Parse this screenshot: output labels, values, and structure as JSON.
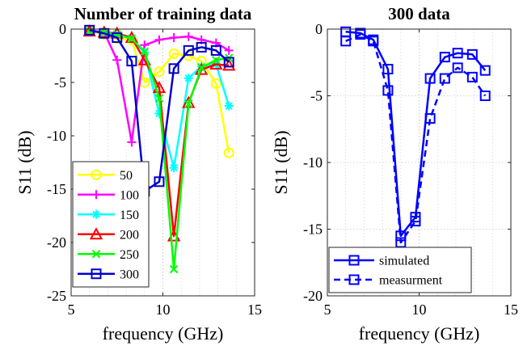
{
  "chart_data": [
    {
      "type": "line",
      "title": "Number of training data",
      "xlabel": "frequency (GHz)",
      "ylabel": "S11 (dB)",
      "xlim": [
        5,
        15
      ],
      "ylim": [
        -25,
        0
      ],
      "xticks": [
        5,
        10,
        15
      ],
      "yticks": [
        0,
        -5,
        -10,
        -15,
        -20,
        -25
      ],
      "grid": "vertical dotted",
      "legend": "bottom-left",
      "series": [
        {
          "name": "50",
          "color": "#ffff00",
          "marker": "circle",
          "x": [
            6.0,
            6.8,
            7.5,
            8.3,
            9.0,
            9.8,
            10.6,
            11.4,
            12.1,
            12.9,
            13.6
          ],
          "y": [
            -0.2,
            -0.5,
            -0.9,
            -1.0,
            -5.0,
            -4.0,
            -2.3,
            -2.5,
            -3.0,
            -5.1,
            -11.6
          ]
        },
        {
          "name": "100",
          "color": "#ff00ff",
          "marker": "plus",
          "x": [
            6.0,
            6.8,
            7.5,
            8.3,
            9.0,
            9.8,
            10.6,
            11.4,
            12.1,
            12.9,
            13.6
          ],
          "y": [
            -0.1,
            -0.3,
            -2.9,
            -10.6,
            -1.5,
            -1.0,
            -0.8,
            -0.7,
            -1.0,
            -1.3,
            -2.0
          ]
        },
        {
          "name": "150",
          "color": "#00ffff",
          "marker": "star",
          "x": [
            6.0,
            6.8,
            7.5,
            8.3,
            9.0,
            9.8,
            10.6,
            11.4,
            12.1,
            12.9,
            13.6
          ],
          "y": [
            -0.2,
            -0.3,
            -0.5,
            -0.9,
            -2.2,
            -7.9,
            -13.0,
            -4.6,
            -3.5,
            -3.3,
            -7.2
          ]
        },
        {
          "name": "200",
          "color": "#ff0000",
          "marker": "triangle",
          "x": [
            6.0,
            6.8,
            7.5,
            8.3,
            9.0,
            9.8,
            10.6,
            11.4,
            12.1,
            12.9,
            13.6
          ],
          "y": [
            -0.2,
            -0.3,
            -0.4,
            -0.8,
            -2.9,
            -5.5,
            -19.4,
            -6.9,
            -3.8,
            -3.3,
            -3.4
          ]
        },
        {
          "name": "250",
          "color": "#00ff00",
          "marker": "x",
          "x": [
            6.0,
            6.8,
            7.5,
            8.3,
            9.0,
            9.8,
            10.6,
            11.4,
            12.1,
            12.9,
            13.6
          ],
          "y": [
            -0.2,
            -0.3,
            -0.5,
            -0.9,
            -2.1,
            -6.5,
            -22.5,
            -7.0,
            -3.6,
            -2.9,
            -2.7
          ]
        },
        {
          "name": "300",
          "color": "#0000cc",
          "marker": "square",
          "x": [
            6.0,
            6.8,
            7.5,
            8.3,
            9.0,
            9.8,
            10.6,
            11.4,
            12.1,
            12.9,
            13.6
          ],
          "y": [
            -0.1,
            -0.4,
            -0.8,
            -3.0,
            -15.2,
            -14.3,
            -3.7,
            -2.0,
            -1.7,
            -2.0,
            -3.1
          ]
        }
      ]
    },
    {
      "type": "line",
      "title": "300 data",
      "xlabel": "frequency (GHz)",
      "ylabel": "S11 (dB)",
      "xlim": [
        5,
        15
      ],
      "ylim": [
        -20,
        0
      ],
      "xticks": [
        5,
        10,
        15
      ],
      "yticks": [
        0,
        -5,
        -10,
        -15,
        -20
      ],
      "grid": "both dotted",
      "legend": "bottom-left",
      "series": [
        {
          "name": "simulated",
          "color": "#0000ff",
          "marker": "square",
          "dash": "solid",
          "x": [
            6.0,
            6.8,
            7.5,
            8.3,
            9.0,
            9.8,
            10.6,
            11.4,
            12.1,
            12.9,
            13.6
          ],
          "y": [
            -0.2,
            -0.3,
            -0.8,
            -3.0,
            -15.5,
            -14.1,
            -3.7,
            -2.1,
            -1.8,
            -1.9,
            -3.1
          ]
        },
        {
          "name": "measurment",
          "color": "#0000ff",
          "marker": "square",
          "dash": "dashed",
          "x": [
            6.0,
            6.8,
            7.5,
            8.3,
            9.0,
            9.8,
            10.6,
            11.4,
            12.1,
            12.9,
            13.6
          ],
          "y": [
            -0.9,
            -0.4,
            -0.9,
            -4.6,
            -16.0,
            -14.4,
            -6.7,
            -3.7,
            -2.9,
            -3.6,
            -5.0
          ]
        }
      ]
    }
  ]
}
